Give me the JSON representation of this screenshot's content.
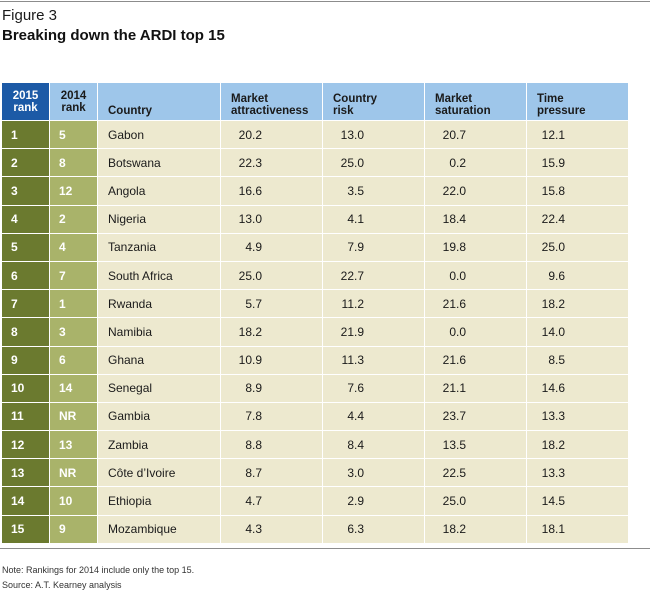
{
  "figure": {
    "label": "Figure 3",
    "title": "Breaking down the ARDI top 15"
  },
  "table": {
    "headers": {
      "rank_2015": [
        "2015",
        "rank"
      ],
      "rank_2014": [
        "2014",
        "rank"
      ],
      "country": "Country",
      "market_attractiveness": [
        "Market",
        "attractiveness"
      ],
      "country_risk": [
        "Country",
        "risk"
      ],
      "market_saturation": [
        "Market",
        "saturation"
      ],
      "time_pressure": [
        "Time",
        "pressure"
      ]
    },
    "rows": [
      {
        "rank_2015": "1",
        "rank_2014": "5",
        "country": "Gabon",
        "market_attractiveness": "20.2",
        "country_risk": "13.0",
        "market_saturation": "20.7",
        "time_pressure": "12.1"
      },
      {
        "rank_2015": "2",
        "rank_2014": "8",
        "country": "Botswana",
        "market_attractiveness": "22.3",
        "country_risk": "25.0",
        "market_saturation": "0.2",
        "time_pressure": "15.9"
      },
      {
        "rank_2015": "3",
        "rank_2014": "12",
        "country": "Angola",
        "market_attractiveness": "16.6",
        "country_risk": "3.5",
        "market_saturation": "22.0",
        "time_pressure": "15.8"
      },
      {
        "rank_2015": "4",
        "rank_2014": "2",
        "country": "Nigeria",
        "market_attractiveness": "13.0",
        "country_risk": "4.1",
        "market_saturation": "18.4",
        "time_pressure": "22.4"
      },
      {
        "rank_2015": "5",
        "rank_2014": "4",
        "country": "Tanzania",
        "market_attractiveness": "4.9",
        "country_risk": "7.9",
        "market_saturation": "19.8",
        "time_pressure": "25.0"
      },
      {
        "rank_2015": "6",
        "rank_2014": "7",
        "country": "South Africa",
        "market_attractiveness": "25.0",
        "country_risk": "22.7",
        "market_saturation": "0.0",
        "time_pressure": "9.6"
      },
      {
        "rank_2015": "7",
        "rank_2014": "1",
        "country": "Rwanda",
        "market_attractiveness": "5.7",
        "country_risk": "11.2",
        "market_saturation": "21.6",
        "time_pressure": "18.2"
      },
      {
        "rank_2015": "8",
        "rank_2014": "3",
        "country": "Namibia",
        "market_attractiveness": "18.2",
        "country_risk": "21.9",
        "market_saturation": "0.0",
        "time_pressure": "14.0"
      },
      {
        "rank_2015": "9",
        "rank_2014": "6",
        "country": "Ghana",
        "market_attractiveness": "10.9",
        "country_risk": "11.3",
        "market_saturation": "21.6",
        "time_pressure": "8.5"
      },
      {
        "rank_2015": "10",
        "rank_2014": "14",
        "country": "Senegal",
        "market_attractiveness": "8.9",
        "country_risk": "7.6",
        "market_saturation": "21.1",
        "time_pressure": "14.6"
      },
      {
        "rank_2015": "11",
        "rank_2014": "NR",
        "country": "Gambia",
        "market_attractiveness": "7.8",
        "country_risk": "4.4",
        "market_saturation": "23.7",
        "time_pressure": "13.3"
      },
      {
        "rank_2015": "12",
        "rank_2014": "13",
        "country": "Zambia",
        "market_attractiveness": "8.8",
        "country_risk": "8.4",
        "market_saturation": "13.5",
        "time_pressure": "18.2"
      },
      {
        "rank_2015": "13",
        "rank_2014": "NR",
        "country": "Côte d’Ivoire",
        "market_attractiveness": "8.7",
        "country_risk": "3.0",
        "market_saturation": "22.5",
        "time_pressure": "13.3"
      },
      {
        "rank_2015": "14",
        "rank_2014": "10",
        "country": "Ethiopia",
        "market_attractiveness": "4.7",
        "country_risk": "2.9",
        "market_saturation": "25.0",
        "time_pressure": "14.5"
      },
      {
        "rank_2015": "15",
        "rank_2014": "9",
        "country": "Mozambique",
        "market_attractiveness": "4.3",
        "country_risk": "6.3",
        "market_saturation": "18.2",
        "time_pressure": "18.1"
      }
    ]
  },
  "notes": {
    "note": "Note: Rankings for 2014 include only the top 15.",
    "source": "Source: A.T. Kearney analysis"
  },
  "colors": {
    "header_2015": "#1c5aa6",
    "header_light": "#9ec6ea",
    "rank_2015_cell": "#6b7a2f",
    "rank_2014_cell": "#a9b36a",
    "body_cell": "#ede9cf"
  }
}
